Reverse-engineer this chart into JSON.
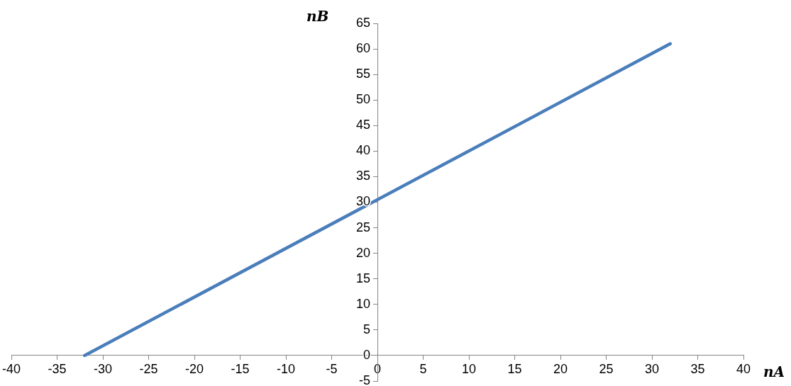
{
  "chart_data": {
    "type": "line",
    "xlabel": "nA",
    "ylabel": "nB",
    "series": [
      {
        "color": "#4a7ebb",
        "x": [
          -32,
          32
        ],
        "values": [
          0,
          61
        ]
      }
    ],
    "xlim": [
      -40,
      40
    ],
    "xticks": [
      -40,
      -35,
      -30,
      -25,
      -20,
      -15,
      -10,
      -5,
      0,
      5,
      10,
      15,
      20,
      25,
      30,
      35,
      40
    ],
    "ylim": [
      -5,
      65
    ],
    "yticks": [
      -5,
      0,
      5,
      10,
      15,
      20,
      25,
      30,
      35,
      40,
      45,
      50,
      55,
      60,
      65
    ]
  }
}
